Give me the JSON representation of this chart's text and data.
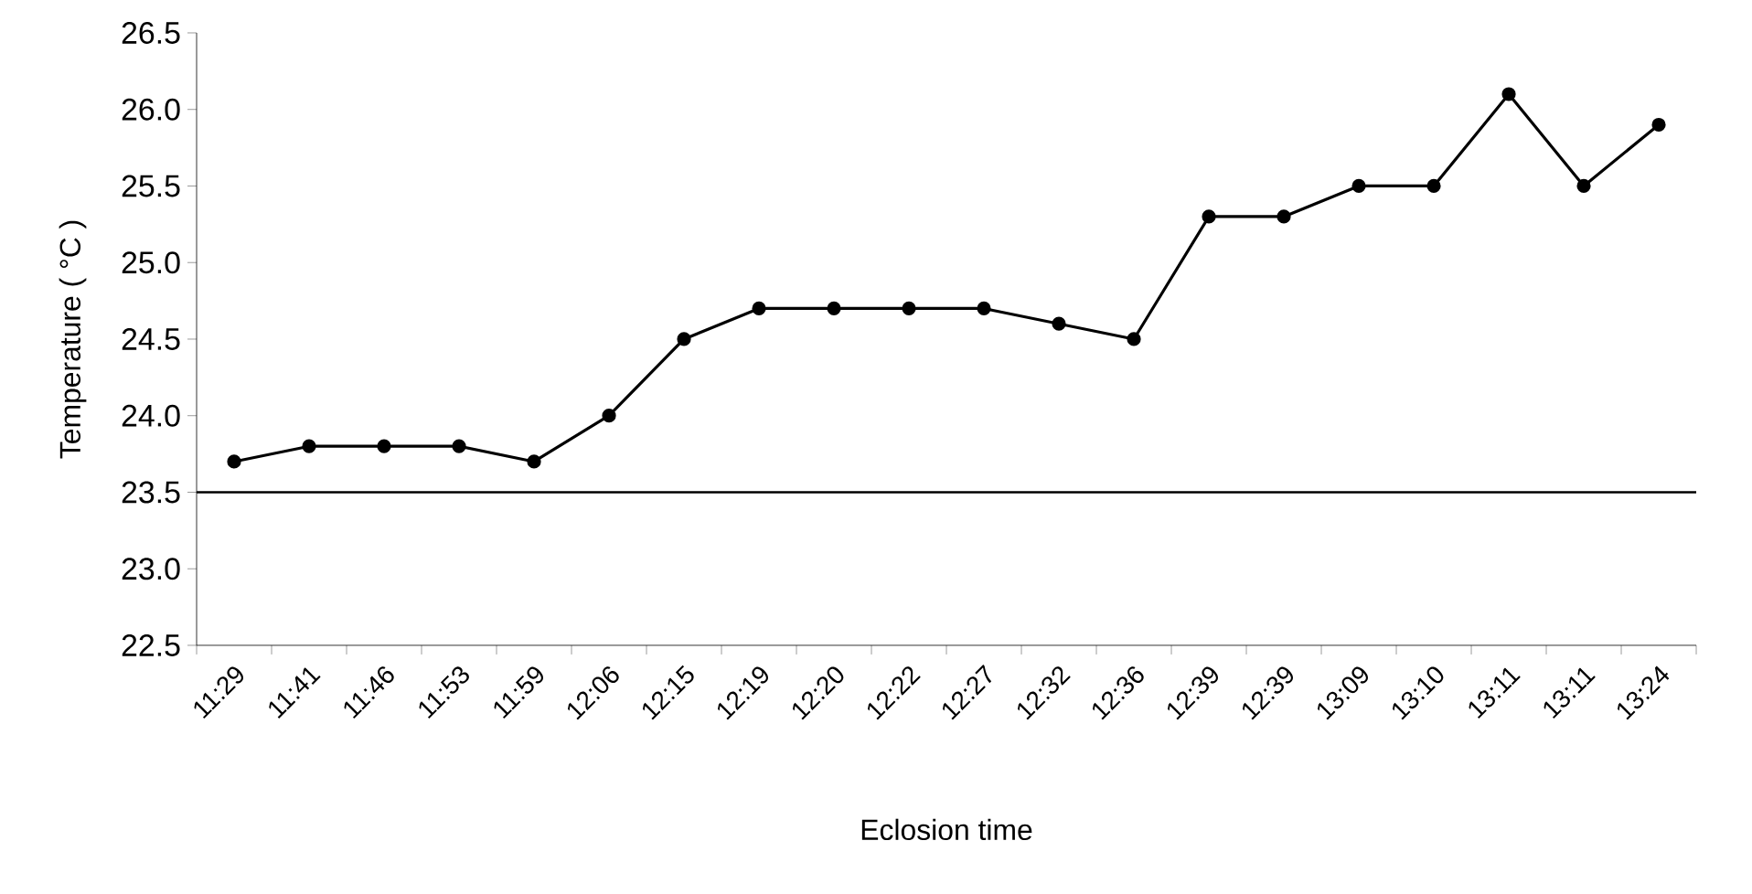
{
  "chart_data": {
    "type": "line",
    "xlabel": "Eclosion time",
    "ylabel": "Temperature ( °C )",
    "categories": [
      "11:29",
      "11:41",
      "11:46",
      "11:53",
      "11:59",
      "12:06",
      "12:15",
      "12:19",
      "12:20",
      "12:22",
      "12:27",
      "12:32",
      "12:36",
      "12:39",
      "12:39",
      "13:09",
      "13:10",
      "13:11",
      "13:11",
      "13:24"
    ],
    "series": [
      {
        "color": "#000000",
        "values": [
          23.7,
          23.8,
          23.8,
          23.8,
          23.7,
          24.0,
          24.5,
          24.7,
          24.7,
          24.7,
          24.7,
          24.6,
          24.5,
          25.3,
          25.3,
          25.5,
          25.5,
          26.1,
          25.5,
          25.9
        ]
      }
    ],
    "ylim": [
      22.5,
      26.5
    ],
    "yticks": [
      {
        "value": 22.5,
        "label": "22.5"
      },
      {
        "value": 23,
        "label": "23.0"
      },
      {
        "value": 23.5,
        "label": "23.5"
      },
      {
        "value": 24,
        "label": "24.0"
      },
      {
        "value": 24.5,
        "label": "24.5"
      },
      {
        "value": 25,
        "label": "25.0"
      },
      {
        "value": 25.5,
        "label": "25.5"
      },
      {
        "value": 26,
        "label": "26.0"
      },
      {
        "value": 26.5,
        "label": "26.5"
      }
    ],
    "ref_lines": [
      {
        "axis": "y",
        "value": 23.5,
        "color": "#000000"
      }
    ],
    "marker": "circle",
    "line_style": "solid",
    "grid": false
  }
}
